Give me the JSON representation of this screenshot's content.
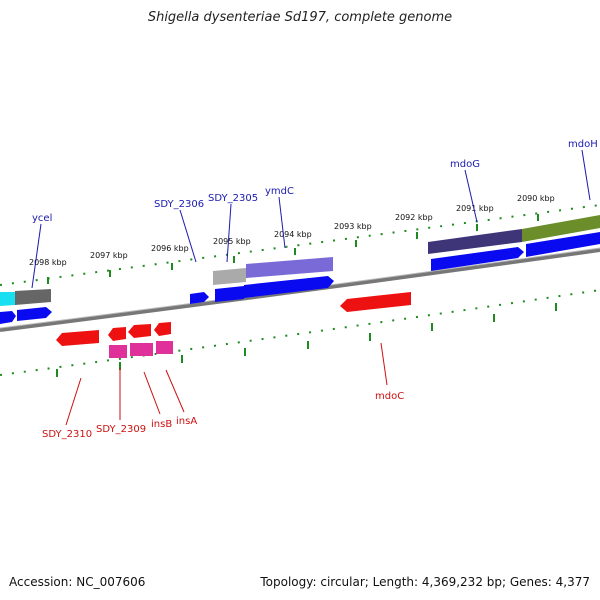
{
  "title": "Shigella dysenteriae Sd197, complete genome",
  "footer": {
    "accession": "Accession: NC_007606",
    "topology": "Topology: circular; Length: 4,369,232 bp; Genes: 4,377"
  },
  "ticks": [
    "2098 kbp",
    "2097 kbp",
    "2096 kbp",
    "2095 kbp",
    "2094 kbp",
    "2093 kbp",
    "2092 kbp",
    "2091 kbp",
    "2090 kbp"
  ],
  "top_labels": [
    "ycel",
    "SDY_2306",
    "SDY_2305",
    "ymdC",
    "mdoG",
    "mdoH"
  ],
  "bottom_labels": [
    "SDY_2310",
    "SDY_2309",
    "insB",
    "insA",
    "mdoC"
  ],
  "colors": {
    "backbone": "#777777",
    "forward_gene": "#0a0af0",
    "reverse_gene": "#ee1111",
    "insertion_element": "#e0309a",
    "tick_mark": "#1f8a1f",
    "top_label": "#1a1ab0",
    "bottom_label": "#cc1111"
  }
}
